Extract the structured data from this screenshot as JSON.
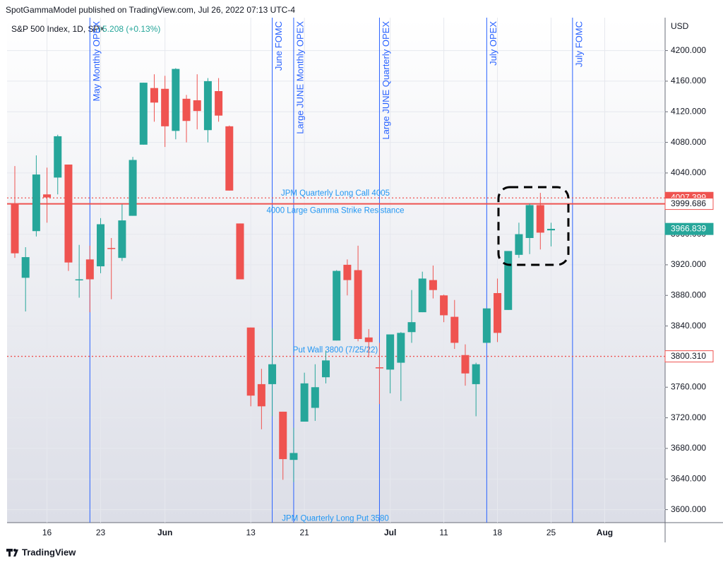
{
  "chart_data": {
    "type": "candlestick",
    "header": "SpotGammaModel published on TradingView.com, Jul 26, 2022 07:13 UTC-4",
    "title": "S&P 500 Index, 1D, SPX",
    "change": "+5.208 (+0.13%)",
    "currency": "USD",
    "source": "TradingView",
    "categories": [
      null,
      null,
      null,
      "16",
      null,
      null,
      null,
      null,
      "23",
      null,
      null,
      null,
      null,
      null,
      "Jun",
      null,
      null,
      null,
      null,
      null,
      null,
      null,
      "13",
      null,
      null,
      null,
      null,
      "21",
      null,
      null,
      null,
      null,
      null,
      null,
      null,
      "Jul",
      null,
      null,
      null,
      null,
      "11",
      null,
      null,
      null,
      null,
      "18",
      null,
      null,
      null,
      null,
      "25",
      null,
      null,
      null,
      null,
      "Aug"
    ],
    "open": [
      3999,
      3903,
      3964,
      4012,
      4034,
      4051,
      3900,
      3927,
      3918,
      3942,
      3929,
      3984,
      4077,
      4151,
      4150,
      4095,
      4137,
      4135,
      4096,
      4147,
      4101,
      3974,
      3838,
      3764,
      3764,
      3728,
      3665,
      3715,
      3733,
      3773,
      3821,
      3920,
      3913,
      3825,
      3786,
      3783,
      3792,
      3832,
      3858,
      3900,
      3880,
      3852,
      3802,
      3764,
      3818,
      3883,
      3861,
      3933,
      3955,
      3998,
      3965,
      null,
      null,
      null,
      null,
      null
    ],
    "high": [
      4049,
      3943,
      4063,
      4047,
      4090,
      4051,
      3946,
      3945,
      3981,
      3955,
      3999,
      4061,
      4158,
      4169,
      4167,
      4177,
      4142,
      4169,
      4164,
      4164,
      4102,
      3974,
      3838,
      3784,
      3837,
      3728,
      3707,
      3779,
      3790,
      3808,
      3913,
      3927,
      3945,
      3836,
      3818,
      3829,
      3832,
      3887,
      3911,
      3919,
      3881,
      3874,
      3816,
      3792,
      3863,
      3902,
      3938,
      3975,
      4000,
      4014,
      3975,
      null,
      null,
      null,
      null,
      null
    ],
    "low": [
      3929,
      3859,
      3957,
      3975,
      4012,
      3912,
      3877,
      3858,
      3909,
      3875,
      3925,
      3984,
      4077,
      4107,
      4074,
      4084,
      4080,
      4097,
      4080,
      4107,
      4017,
      3901,
      3735,
      3705,
      3722,
      3639,
      3636,
      3715,
      3716,
      3765,
      3821,
      3880,
      3820,
      3799,
      3738,
      3752,
      3742,
      3818,
      3858,
      3876,
      3845,
      3810,
      3762,
      3722,
      3818,
      3819,
      3861,
      3929,
      3934,
      3940,
      3944,
      null,
      null,
      null,
      null,
      null
    ],
    "close": [
      3935,
      3930,
      4038,
      4008,
      4088,
      3923,
      3901,
      3901,
      3973,
      3941,
      3978,
      4057,
      4158,
      4132,
      4101,
      4176,
      4108,
      4121,
      4160,
      4115,
      4017,
      3901,
      3749,
      3735,
      3790,
      3666,
      3674,
      3765,
      3760,
      3795,
      3912,
      3900,
      3823,
      3819,
      3785,
      3829,
      3831,
      3845,
      3902,
      3887,
      3854,
      3818,
      3778,
      3790,
      3863,
      3831,
      3938,
      3960,
      3998,
      3962,
      3967,
      null,
      null,
      null,
      null,
      null
    ],
    "up_color": "#26a69a",
    "down_color": "#ef5350",
    "ylim": [
      3583,
      4243
    ],
    "yticks": [
      {
        "value": 3600,
        "label": "3600.000"
      },
      {
        "value": 3640,
        "label": "3640.000"
      },
      {
        "value": 3680,
        "label": "3680.000"
      },
      {
        "value": 3720,
        "label": "3720.000"
      },
      {
        "value": 3760,
        "label": "3760.000"
      },
      {
        "value": 3800,
        "label": "3800.000"
      },
      {
        "value": 3840,
        "label": "3840.000"
      },
      {
        "value": 3880,
        "label": "3880.000"
      },
      {
        "value": 3920,
        "label": "3920.000"
      },
      {
        "value": 3960,
        "label": "3960.000"
      },
      {
        "value": 4000,
        "label": "4000.000"
      },
      {
        "value": 4040,
        "label": "4040.000"
      },
      {
        "value": 4080,
        "label": "4080.000"
      },
      {
        "value": 4120,
        "label": "4120.000"
      },
      {
        "value": 4160,
        "label": "4160.000"
      },
      {
        "value": 4200,
        "label": "4200.000"
      }
    ],
    "grid": true,
    "levels": [
      {
        "value": 4007.399,
        "style": "dotted",
        "color": "#ef5350"
      },
      {
        "value": 3999.686,
        "style": "solid",
        "color": "#ef5350"
      },
      {
        "value": 3800.31,
        "label": "3800.310",
        "style": "dotted",
        "color": "#ef5350"
      }
    ],
    "last_price": {
      "value": 3966.839,
      "color": "#26a69a"
    },
    "annotations": [
      {
        "text": "JPM Quarterly Long Call 4005",
        "value": 4005,
        "side": "above"
      },
      {
        "text": "4000 Large Gamma Strike Resistance",
        "value": 4000,
        "side": "below"
      },
      {
        "text": "Put Wall 3800 (7/25/22)",
        "value": 3800,
        "side": "above"
      },
      {
        "text": "JPM Quarterly Long Put 3580",
        "value": 3580,
        "side": "above"
      }
    ],
    "events": [
      {
        "index": 7,
        "label": "May Monthly OPEX"
      },
      {
        "index": 24,
        "label": "June FOMC"
      },
      {
        "index": 26,
        "label": "Large JUNE Monthly OPEX"
      },
      {
        "index": 34,
        "label": "Large JUNE Quarterly OPEX"
      },
      {
        "index": 44,
        "label": "July OPEX"
      },
      {
        "index": 52,
        "label": "July FOMC"
      }
    ],
    "event_color": "#2962ff"
  }
}
